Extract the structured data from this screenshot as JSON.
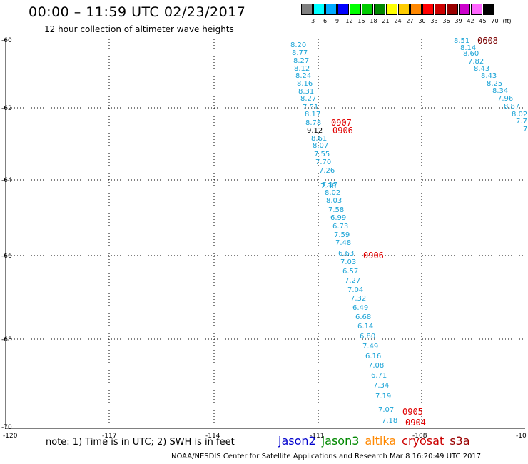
{
  "header": {
    "title": "00:00 – 11:59 UTC 02/23/2017",
    "subtitle": "12 hour collection of altimeter wave heights"
  },
  "scale": {
    "labels": [
      "3",
      "6",
      "9",
      "12",
      "15",
      "18",
      "21",
      "24",
      "27",
      "30",
      "33",
      "36",
      "39",
      "42",
      "45",
      "70",
      "(ft)"
    ],
    "colors": [
      "#808080",
      "#00ffff",
      "#00aaff",
      "#0000ff",
      "#00ff00",
      "#00cc00",
      "#008800",
      "#ffff00",
      "#ffcc00",
      "#ff8800",
      "#ff0000",
      "#cc0000",
      "#990000",
      "#cc00cc",
      "#ff66ff",
      "#000000"
    ]
  },
  "axes": {
    "lon_labels": [
      "-120",
      "-117",
      "-114",
      "-111",
      "-108",
      "-10"
    ],
    "lat_labels": [
      "-60",
      "-62",
      "-64",
      "-66",
      "-68",
      "-70"
    ]
  },
  "track_main": {
    "values": [
      "8.20",
      "8.77",
      "8.27",
      "8.12",
      "8.24",
      "8.16",
      "8.31",
      "8.27",
      "7.51",
      "8.17",
      "8.78",
      "9.12",
      "8.61",
      "8.07",
      "7.55",
      "7.70",
      "7.26",
      "7.38",
      "7.17",
      "8.02",
      "8.03",
      "7.58",
      "6.99",
      "6.73",
      "7.59",
      "7.48",
      "6.63",
      "7.03",
      "6.57",
      "7.27",
      "7.04",
      "7.32",
      "6.49",
      "6.68",
      "6.14",
      "6.80",
      "7.49",
      "6.16",
      "7.08",
      "6.71",
      "7.34",
      "7.19",
      "7.07",
      "7.18"
    ]
  },
  "track_east": {
    "values": [
      "8.51",
      "8.14",
      "8.60",
      "7.82",
      "8.43",
      "8.43",
      "8.25",
      "8.34",
      "7.96",
      "8.87",
      "8.02",
      "7.7",
      "7"
    ]
  },
  "time_labels": [
    "0608",
    "0907",
    "0906",
    "0906",
    "0905",
    "0904"
  ],
  "footer": {
    "note": "note: 1) Time is in UTC; 2) SWH is in feet",
    "satellites": [
      {
        "name": "jason2",
        "color": "#0000cc"
      },
      {
        "name": "jason3",
        "color": "#008800"
      },
      {
        "name": "altika",
        "color": "#ff8800"
      },
      {
        "name": "cryosat",
        "color": "#cc0000"
      },
      {
        "name": "s3a",
        "color": "#990000"
      }
    ],
    "credit": "NOAA/NESDIS Center for Satellite Applications and Research   Mar  8 16:20:49 UTC 2017"
  }
}
